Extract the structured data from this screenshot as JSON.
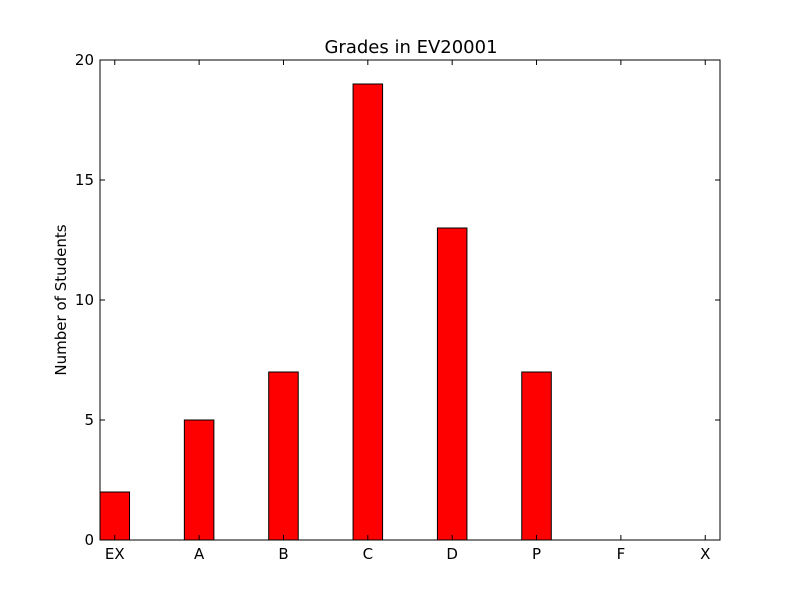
{
  "chart_data": {
    "type": "bar",
    "title": "Grades in EV20001",
    "xlabel": "",
    "ylabel": "Number of Students",
    "categories": [
      "EX",
      "A",
      "B",
      "C",
      "D",
      "P",
      "F",
      "X"
    ],
    "values": [
      2,
      5,
      7,
      19,
      13,
      7,
      0,
      0
    ],
    "ylim": [
      0,
      20
    ],
    "yticks": [
      0,
      5,
      10,
      15,
      20
    ],
    "bar_color": "#ff0000",
    "edge_color": "#000000",
    "grid": false
  }
}
